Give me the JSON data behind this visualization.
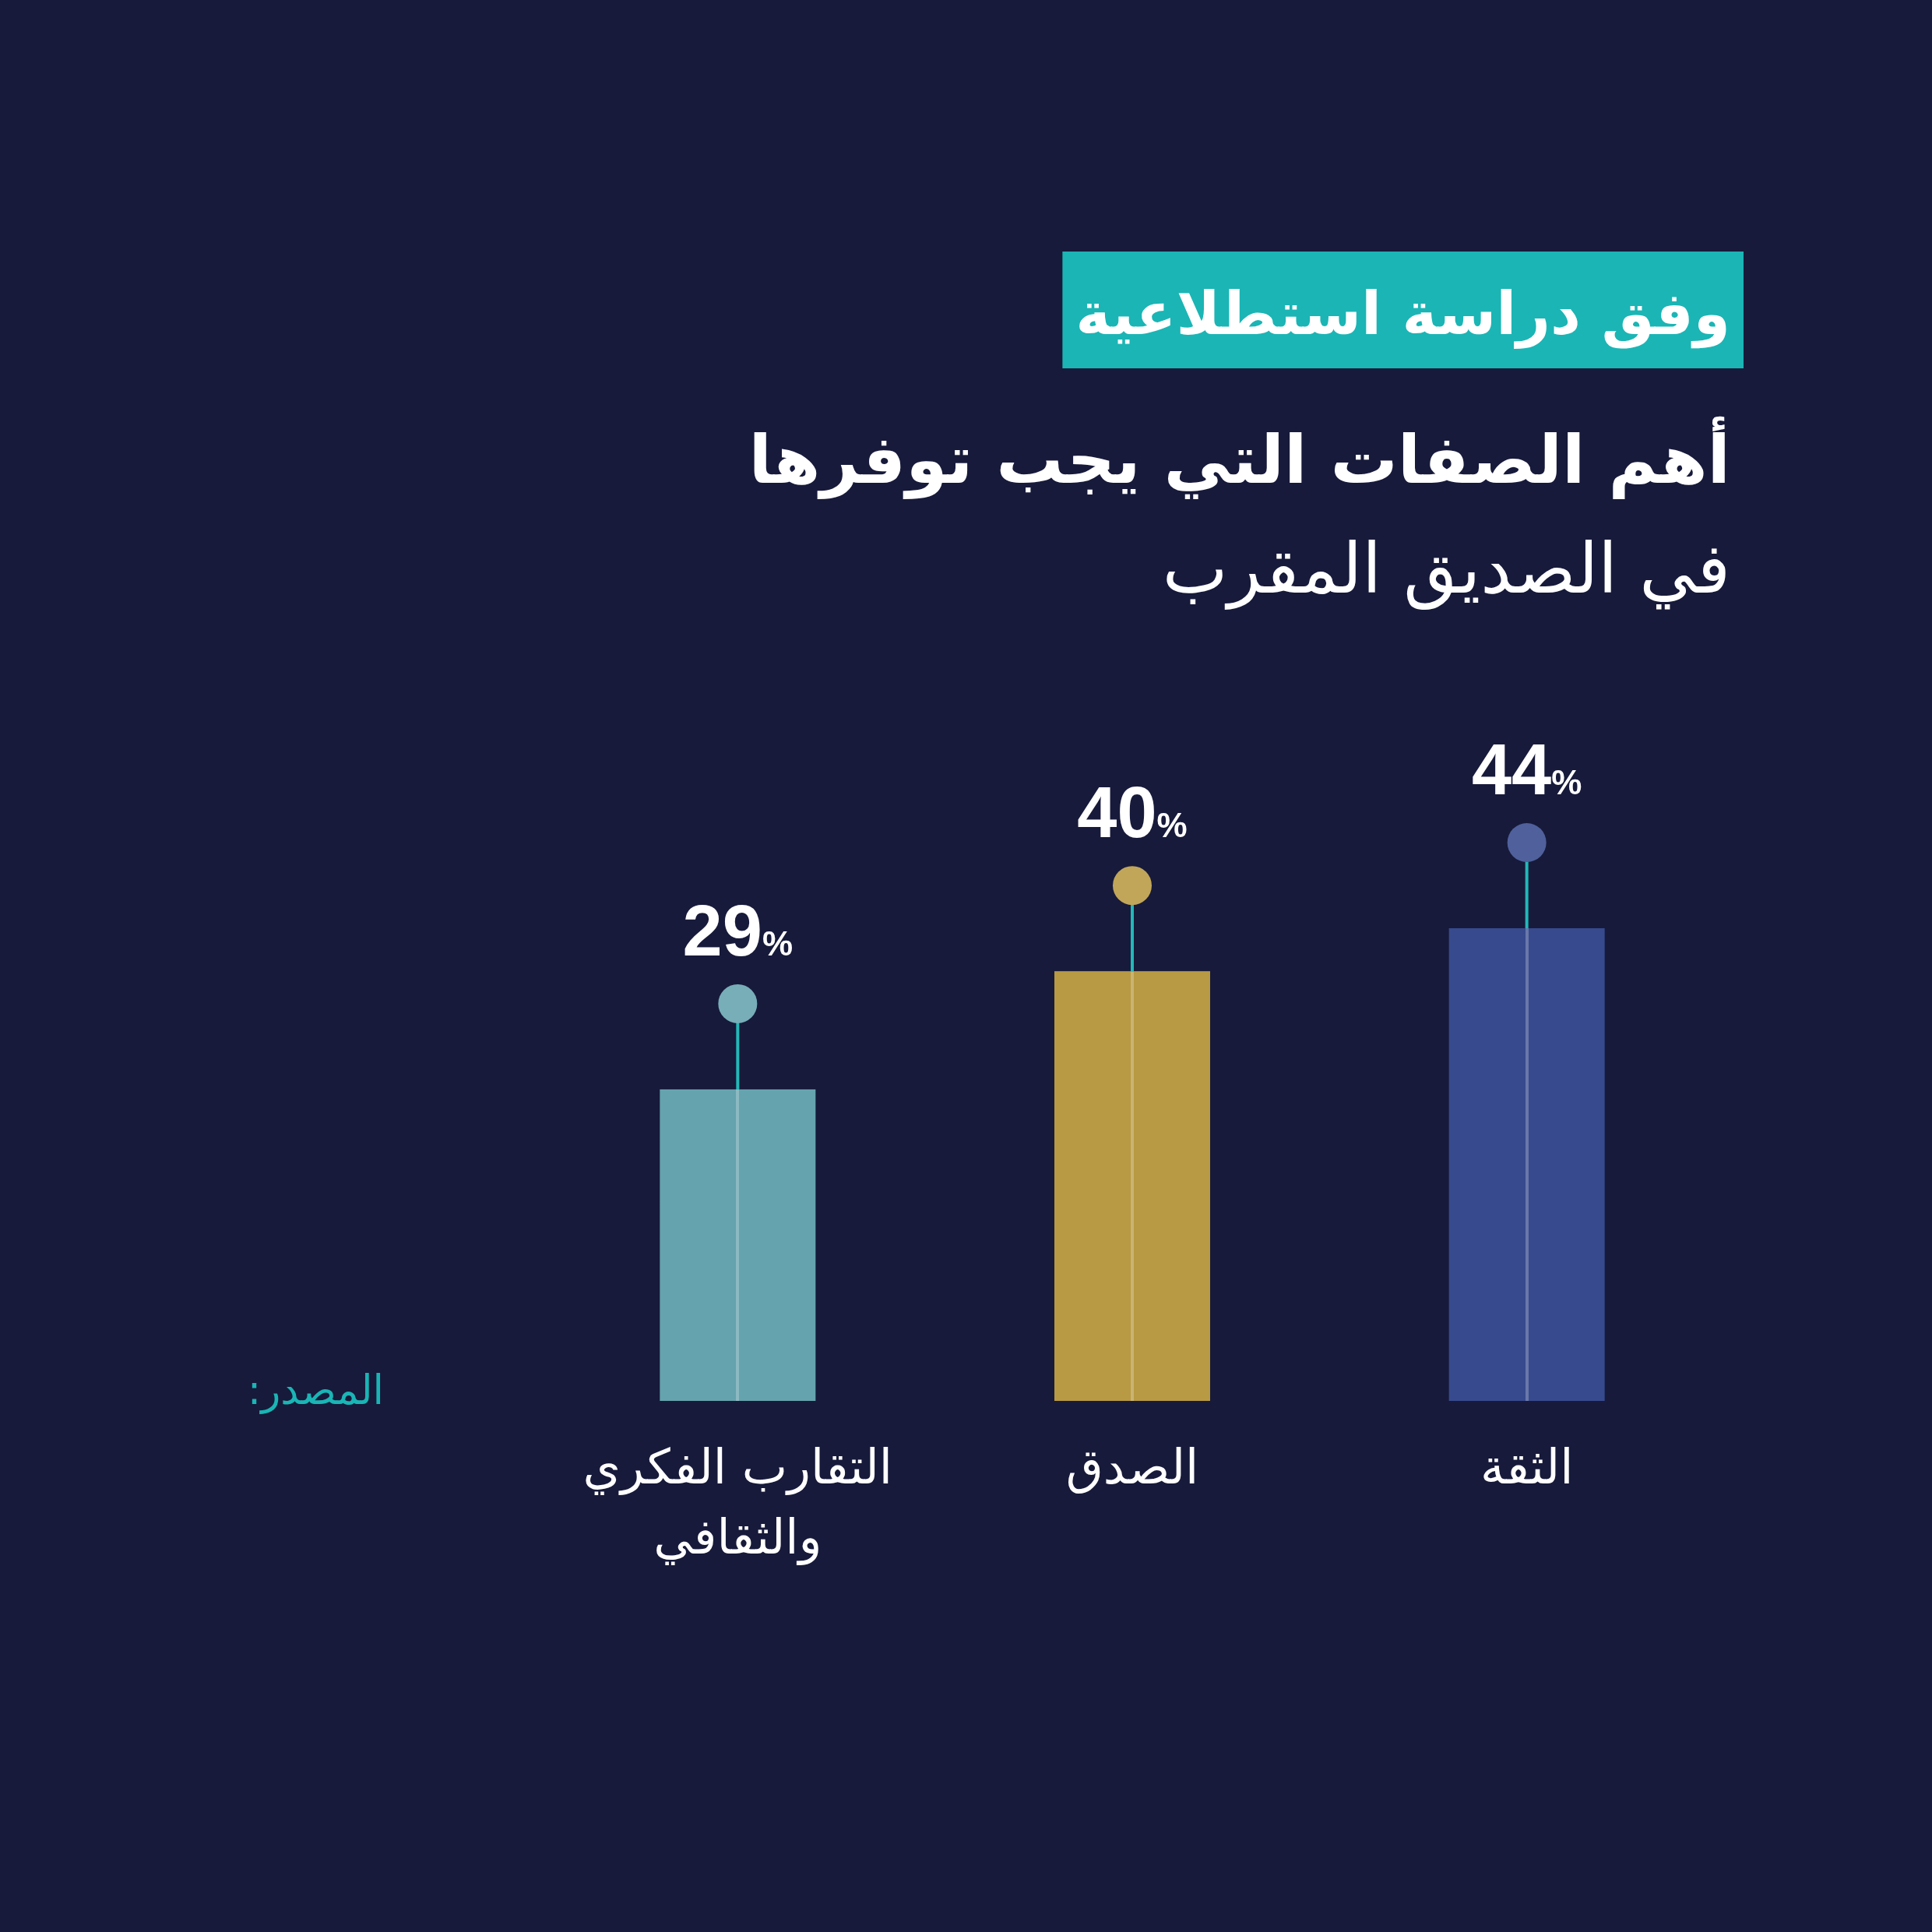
{
  "chart_data": {
    "type": "bar",
    "title": "أهم الصفات التي يجب توفرها",
    "subtitle": "في الصديق المقرب",
    "annotations": [
      "وفق دراسة استطلاعية",
      "المصدر:"
    ],
    "categories": [
      "التقارب الفكري والثقافي",
      "الصدق",
      "الثقة"
    ],
    "values": [
      29,
      40,
      44
    ],
    "colors": [
      "#65a3ae",
      "#b89a44",
      "#374a8e"
    ],
    "value_labels": [
      "29%",
      "40%",
      "44%"
    ]
  }
}
